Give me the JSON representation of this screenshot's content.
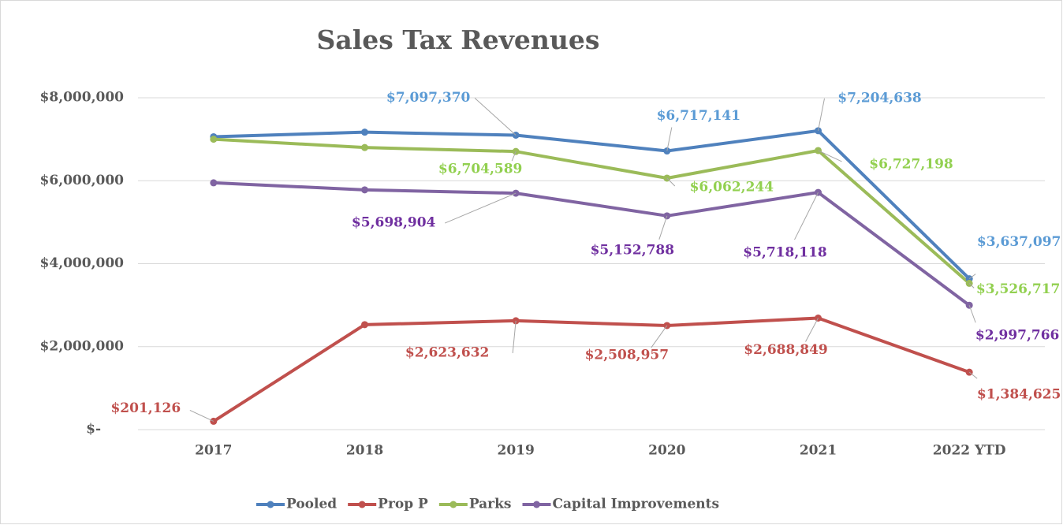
{
  "chart_data": {
    "type": "line",
    "title": "Sales Tax Revenues",
    "categories": [
      "2017",
      "2018",
      "2019",
      "2020",
      "2021",
      "2022 YTD"
    ],
    "ylim": [
      0,
      8000000
    ],
    "yticks": [
      {
        "value": 0,
        "label": "$-"
      },
      {
        "value": 2000000,
        "label": "$2,000,000"
      },
      {
        "value": 4000000,
        "label": "$4,000,000"
      },
      {
        "value": 6000000,
        "label": "$6,000,000"
      },
      {
        "value": 8000000,
        "label": "$8,000,000"
      }
    ],
    "grid": true,
    "legend": "bottom",
    "series": [
      {
        "name": "Pooled",
        "color": "#4f81bd",
        "label_color": "#5b9bd5",
        "values": [
          7060000,
          7170000,
          7097370,
          6717141,
          7204638,
          3637097
        ],
        "value_labels": [
          null,
          null,
          "$7,097,370",
          "$6,717,141",
          "$7,204,638",
          "$3,637,097"
        ]
      },
      {
        "name": "Prop P",
        "color": "#c0504d",
        "label_color": "#c0504d",
        "values": [
          201126,
          2530000,
          2623632,
          2508957,
          2688849,
          1384625
        ],
        "value_labels": [
          "$201,126",
          null,
          "$2,623,632",
          "$2,508,957",
          "$2,688,849",
          "$1,384,625"
        ]
      },
      {
        "name": "Parks",
        "color": "#9bbb59",
        "label_color": "#92d050",
        "values": [
          7000000,
          6800000,
          6704589,
          6062244,
          6727198,
          3526717
        ],
        "value_labels": [
          null,
          null,
          "$6,704,589",
          "$6,062,244",
          "$6,727,198",
          "$3,526,717"
        ]
      },
      {
        "name": "Capital Improvements",
        "color": "#8064a2",
        "label_color": "#7030a0",
        "values": [
          5950000,
          5780000,
          5698904,
          5152788,
          5718118,
          2997766
        ],
        "value_labels": [
          null,
          null,
          "$5,698,904",
          "$5,152,788",
          "$5,718,118",
          "$2,997,766"
        ]
      }
    ]
  }
}
